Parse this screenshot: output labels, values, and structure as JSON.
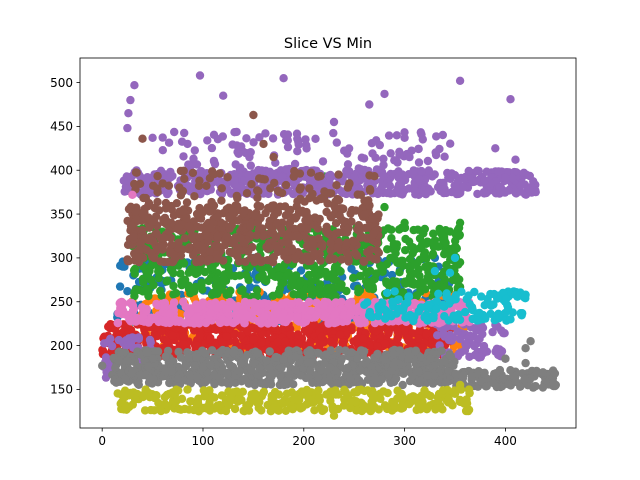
{
  "chart_data": {
    "type": "scatter",
    "title": "Slice VS Min",
    "xlabel": "",
    "ylabel": "",
    "xlim": [
      -22,
      470
    ],
    "ylim": [
      106,
      528
    ],
    "grid": false,
    "legend": "none",
    "xticks": [
      0,
      100,
      200,
      300,
      400
    ],
    "yticks": [
      150,
      200,
      250,
      300,
      350,
      400,
      450,
      500
    ],
    "series": [
      {
        "color": "#1f77b4",
        "x_range": [
          15,
          345
        ],
        "y_range": [
          225,
          300
        ],
        "n": 260,
        "seed": 11,
        "extra": [
          [
            15,
            232
          ],
          [
            22,
            290
          ],
          [
            25,
            262
          ],
          [
            30,
            250
          ],
          [
            45,
            268
          ],
          [
            150,
            300
          ],
          [
            255,
            310
          ],
          [
            330,
            300
          ]
        ]
      },
      {
        "color": "#ff7f0e",
        "x_range": [
          25,
          360
        ],
        "y_range": [
          190,
          262
        ],
        "n": 320,
        "seed": 22,
        "extra": [
          [
            90,
            210
          ],
          [
            120,
            250
          ],
          [
            250,
            250
          ],
          [
            320,
            198
          ],
          [
            345,
            218
          ]
        ]
      },
      {
        "color": "#2ca02c",
        "x_range": [
          30,
          355
        ],
        "y_range": [
          255,
          335
        ],
        "n": 620,
        "seed": 33,
        "extra": [
          [
            185,
            400
          ],
          [
            200,
            393
          ],
          [
            220,
            393
          ],
          [
            270,
            390
          ],
          [
            280,
            358
          ],
          [
            300,
            340
          ],
          [
            320,
            333
          ],
          [
            345,
            330
          ],
          [
            355,
            340
          ],
          [
            330,
            320
          ],
          [
            345,
            305
          ],
          [
            355,
            295
          ],
          [
            340,
            275
          ]
        ]
      },
      {
        "color": "#d62728",
        "x_range": [
          0,
          345
        ],
        "y_range": [
          188,
          225
        ],
        "n": 620,
        "seed": 44,
        "extra": [
          [
            2,
            210
          ],
          [
            5,
            190
          ],
          [
            330,
            210
          ],
          [
            345,
            205
          ]
        ]
      },
      {
        "color": "#9467bd",
        "x_range": [
          20,
          430
        ],
        "y_range": [
          372,
          400
        ],
        "n": 560,
        "seed": 55,
        "extra": [
          [
            25,
            448
          ],
          [
            26,
            465
          ],
          [
            28,
            480
          ],
          [
            32,
            497
          ],
          [
            50,
            437
          ],
          [
            97,
            508
          ],
          [
            120,
            485
          ],
          [
            180,
            505
          ],
          [
            265,
            475
          ],
          [
            280,
            487
          ],
          [
            355,
            502
          ],
          [
            405,
            481
          ],
          [
            430,
            375
          ],
          [
            300,
            437
          ],
          [
            230,
            455
          ],
          [
            390,
            425
          ],
          [
            410,
            412
          ]
        ]
      },
      {
        "color": "#9467bd",
        "x_range": [
          0,
          50
        ],
        "y_range": [
          160,
          210
        ],
        "n": 60,
        "seed": 56,
        "extra": []
      },
      {
        "color": "#9467bd",
        "x_range": [
          330,
          400
        ],
        "y_range": [
          185,
          225
        ],
        "n": 70,
        "seed": 57,
        "extra": [
          [
            395,
            190
          ],
          [
            400,
            185
          ]
        ]
      },
      {
        "color": "#9467bd",
        "x_range": [
          40,
          350
        ],
        "y_range": [
          400,
          445
        ],
        "n": 110,
        "seed": 58,
        "extra": []
      },
      {
        "color": "#8c564b",
        "x_range": [
          25,
          275
        ],
        "y_range": [
          295,
          360
        ],
        "n": 560,
        "seed": 66,
        "extra": [
          [
            40,
            436
          ],
          [
            60,
            385
          ],
          [
            150,
            463
          ],
          [
            160,
            430
          ],
          [
            170,
            415
          ],
          [
            90,
            397
          ],
          [
            55,
            375
          ]
        ]
      },
      {
        "color": "#8c564b",
        "x_range": [
          30,
          270
        ],
        "y_range": [
          362,
          400
        ],
        "n": 90,
        "seed": 67,
        "extra": []
      },
      {
        "color": "#e377c2",
        "x_range": [
          15,
          365
        ],
        "y_range": [
          225,
          250
        ],
        "n": 560,
        "seed": 77,
        "extra": [
          [
            12,
            165
          ],
          [
            20,
            165
          ],
          [
            30,
            372
          ],
          [
            345,
            240
          ]
        ]
      },
      {
        "color": "#7f7f7f",
        "x_range": [
          10,
          350
        ],
        "y_range": [
          155,
          195
        ],
        "n": 780,
        "seed": 88,
        "extra": [
          [
            0,
            177
          ],
          [
            350,
            160
          ],
          [
            400,
            185
          ],
          [
            420,
            197
          ],
          [
            425,
            205
          ],
          [
            440,
            163
          ],
          [
            450,
            155
          ],
          [
            420,
            180
          ]
        ]
      },
      {
        "color": "#7f7f7f",
        "x_range": [
          350,
          450
        ],
        "y_range": [
          152,
          172
        ],
        "n": 120,
        "seed": 89,
        "extra": []
      },
      {
        "color": "#bcbd22",
        "x_range": [
          15,
          365
        ],
        "y_range": [
          125,
          150
        ],
        "n": 330,
        "seed": 99,
        "extra": [
          [
            230,
            120
          ],
          [
            350,
            145
          ],
          [
            355,
            155
          ]
        ]
      },
      {
        "color": "#17becf",
        "x_range": [
          260,
          420
        ],
        "y_range": [
          228,
          262
        ],
        "n": 130,
        "seed": 111,
        "extra": [
          [
            330,
            285
          ],
          [
            345,
            283
          ],
          [
            350,
            300
          ],
          [
            410,
            258
          ],
          [
            420,
            258
          ],
          [
            405,
            230
          ]
        ]
      }
    ]
  }
}
